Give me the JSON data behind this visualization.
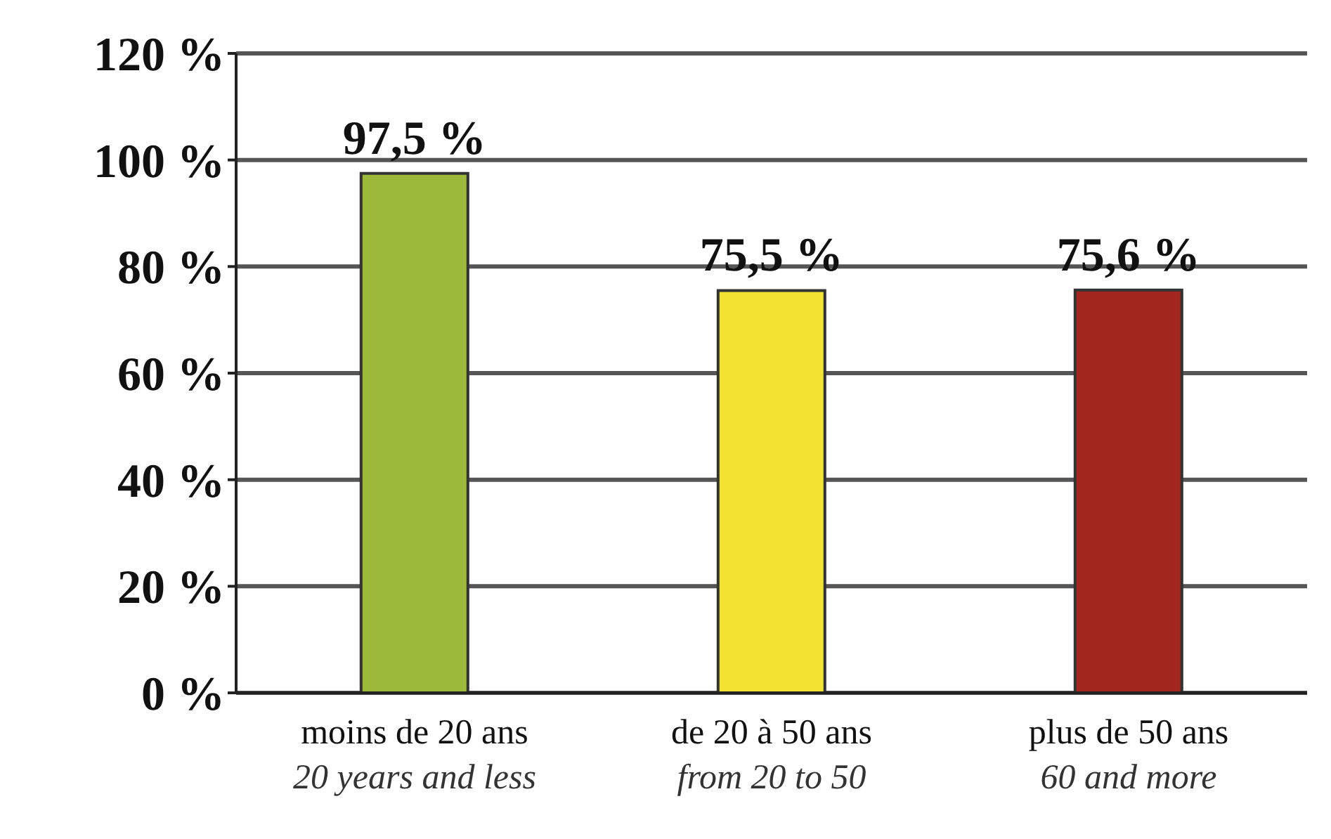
{
  "chart_data": {
    "type": "bar",
    "categories": [
      "moins de 20 ans\n20 years and less",
      "de 20 à 50 ans\nfrom 20 to 50",
      "plus de 50 ans\n60 and more"
    ],
    "values": [
      97.5,
      75.5,
      75.6
    ],
    "colors": [
      "#9cb93a",
      "#f2e332",
      "#a3261f"
    ],
    "value_labels": [
      "97,5 %",
      "75,5 %",
      "75,6 %"
    ],
    "ylim": [
      0,
      120
    ],
    "yticks": [
      {
        "value": 0,
        "label": "0 %"
      },
      {
        "value": 20,
        "label": "20 %"
      },
      {
        "value": 40,
        "label": "40 %"
      },
      {
        "value": 60,
        "label": "60 %"
      },
      {
        "value": 80,
        "label": "80 %"
      },
      {
        "value": 100,
        "label": "100 %"
      },
      {
        "value": 120,
        "label": "120 %"
      }
    ],
    "grid": "y",
    "legend": false
  }
}
